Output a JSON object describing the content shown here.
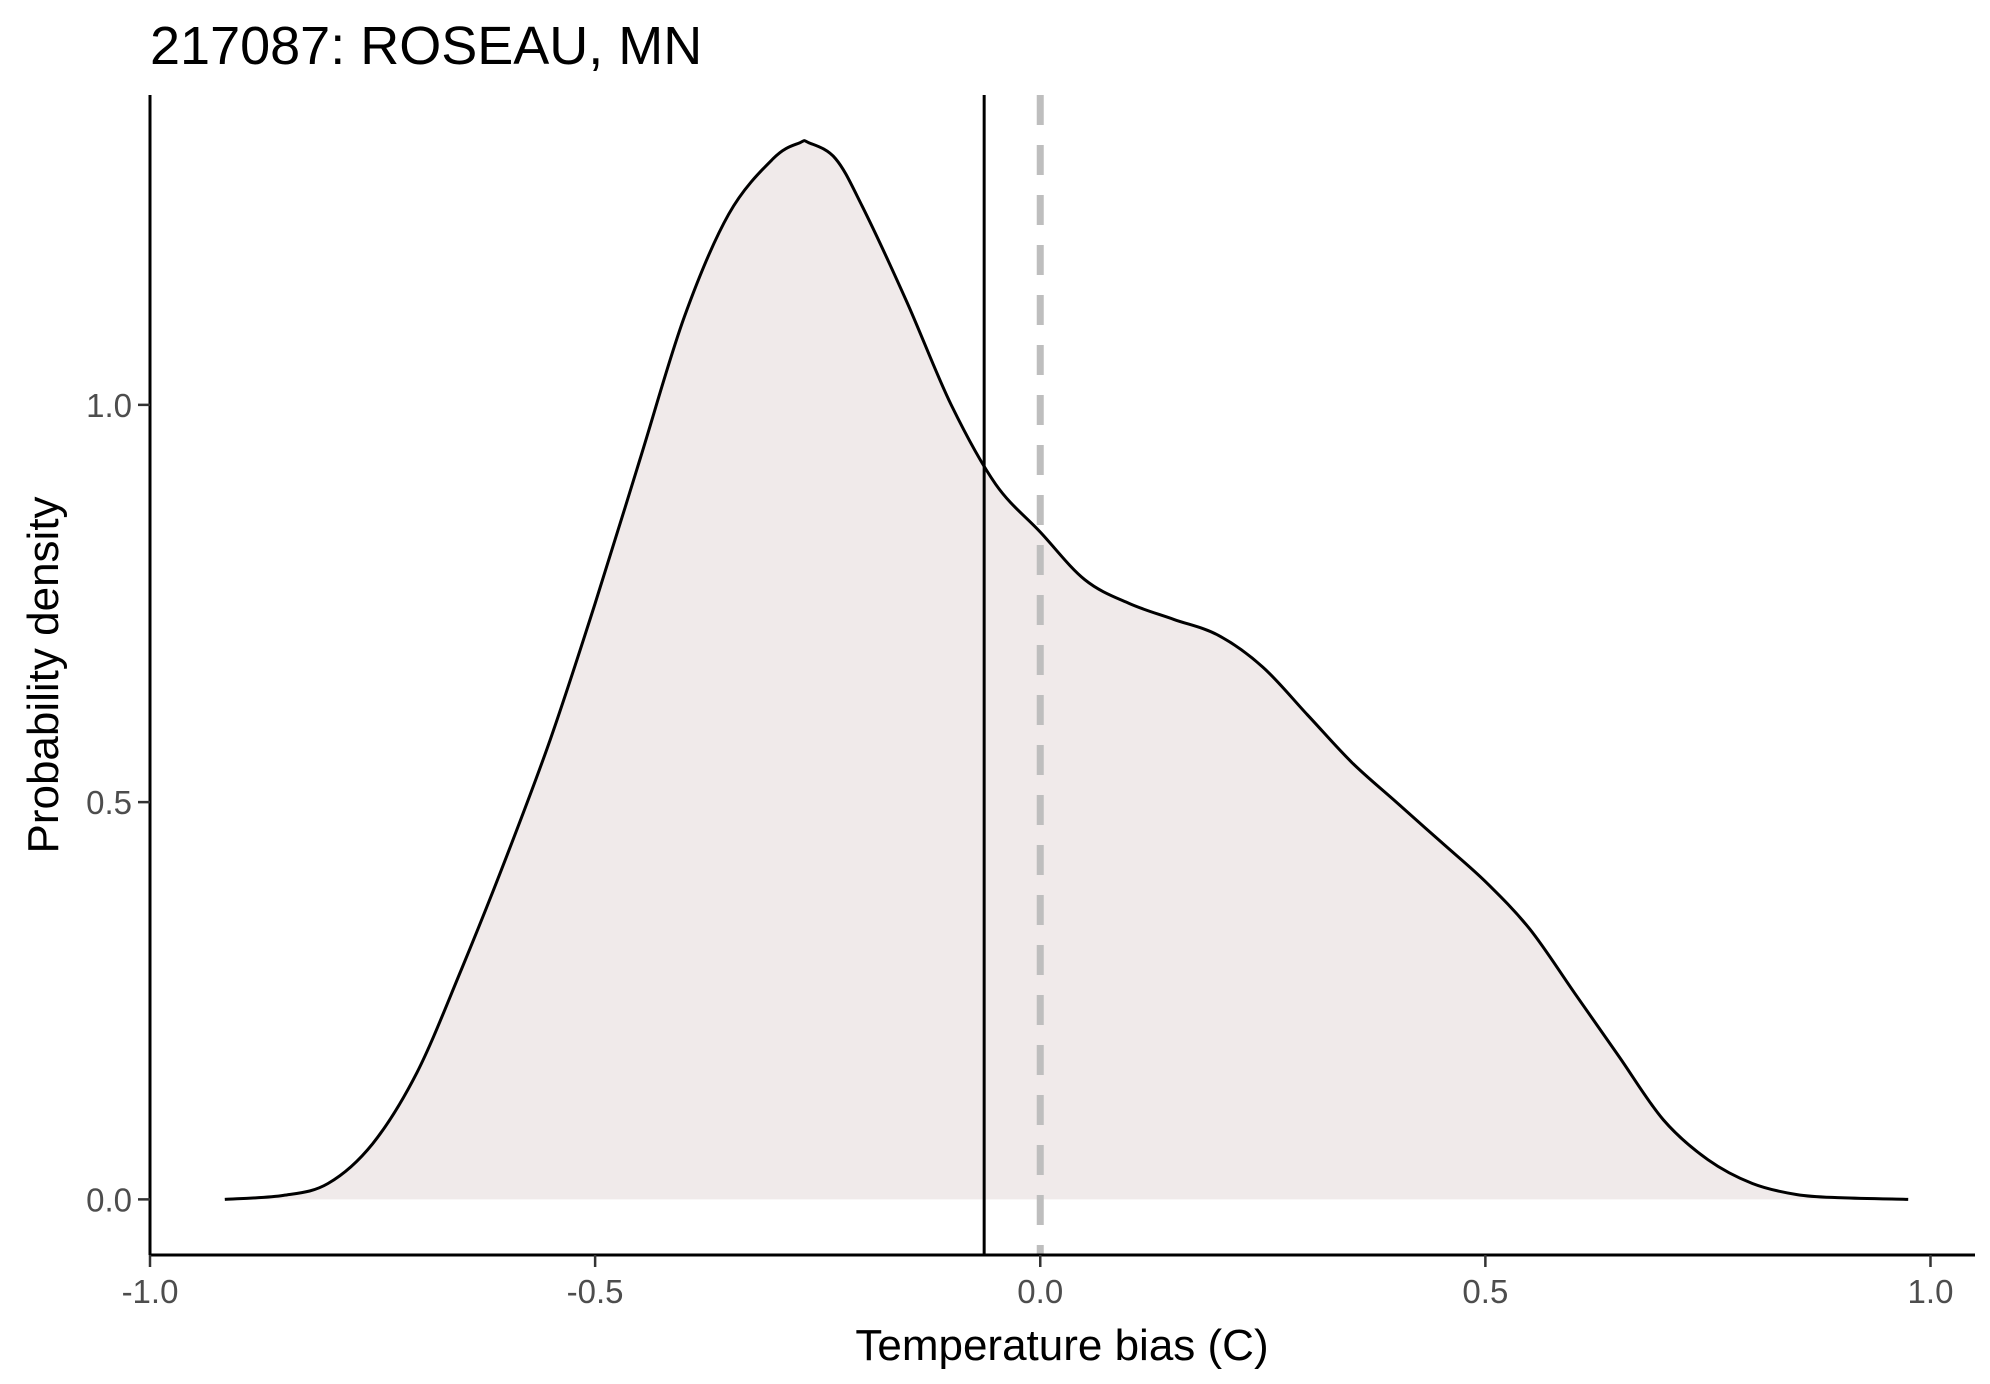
{
  "chart_data": {
    "type": "area",
    "title": "217087: ROSEAU, MN",
    "xlabel": "Temperature bias (C)",
    "ylabel": "Probability density",
    "xlim": [
      -1.0,
      1.05
    ],
    "ylim": [
      -0.07,
      1.39
    ],
    "x_ticks": [
      -1.0,
      -0.5,
      0.0,
      0.5,
      1.0
    ],
    "x_tick_labels": [
      "-1.0",
      "-0.5",
      "0.0",
      "0.5",
      "1.0"
    ],
    "y_ticks": [
      0.0,
      0.5,
      1.0
    ],
    "y_tick_labels": [
      "0.0",
      "0.5",
      "1.0"
    ],
    "grid": false,
    "fill_color": "#f0eaea",
    "line_color": "#000000",
    "series": [
      {
        "x": [
          -0.916,
          -0.85,
          -0.8,
          -0.75,
          -0.7,
          -0.65,
          -0.6,
          -0.55,
          -0.5,
          -0.45,
          -0.4,
          -0.35,
          -0.3,
          -0.27,
          -0.26,
          -0.23,
          -0.2,
          -0.15,
          -0.1,
          -0.05,
          0.0,
          0.05,
          0.1,
          0.15,
          0.2,
          0.25,
          0.3,
          0.35,
          0.4,
          0.45,
          0.5,
          0.55,
          0.6,
          0.65,
          0.7,
          0.75,
          0.8,
          0.85,
          0.9,
          0.975
        ],
        "y": [
          0.0,
          0.005,
          0.02,
          0.07,
          0.16,
          0.29,
          0.43,
          0.58,
          0.75,
          0.93,
          1.11,
          1.24,
          1.31,
          1.33,
          1.33,
          1.31,
          1.25,
          1.13,
          1.0,
          0.9,
          0.84,
          0.78,
          0.75,
          0.73,
          0.71,
          0.67,
          0.61,
          0.55,
          0.5,
          0.45,
          0.4,
          0.34,
          0.26,
          0.18,
          0.1,
          0.05,
          0.02,
          0.006,
          0.002,
          0.0
        ]
      }
    ],
    "reference_lines": [
      {
        "x": -0.063,
        "style": "solid",
        "color": "#000000"
      },
      {
        "x": 0.0,
        "style": "dashed",
        "color": "#bebebe"
      }
    ]
  }
}
